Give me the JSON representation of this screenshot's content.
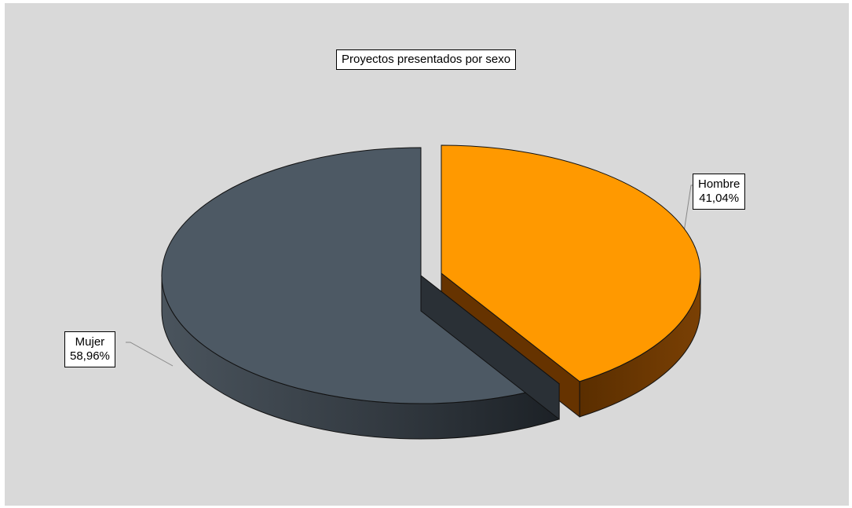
{
  "chart_data": {
    "type": "pie",
    "title": "Proyectos presentados por sexo",
    "categories": [
      "Hombre",
      "Mujer"
    ],
    "values": [
      41.04,
      58.96
    ],
    "value_labels": [
      "41,04%",
      "58,96%"
    ],
    "colors": [
      "#FF9900",
      "#4D5964"
    ],
    "side_colors": [
      "#663300",
      "#3A434B"
    ],
    "exploded": [
      "Hombre"
    ],
    "style": "3d",
    "legend": "none",
    "grid": false
  }
}
